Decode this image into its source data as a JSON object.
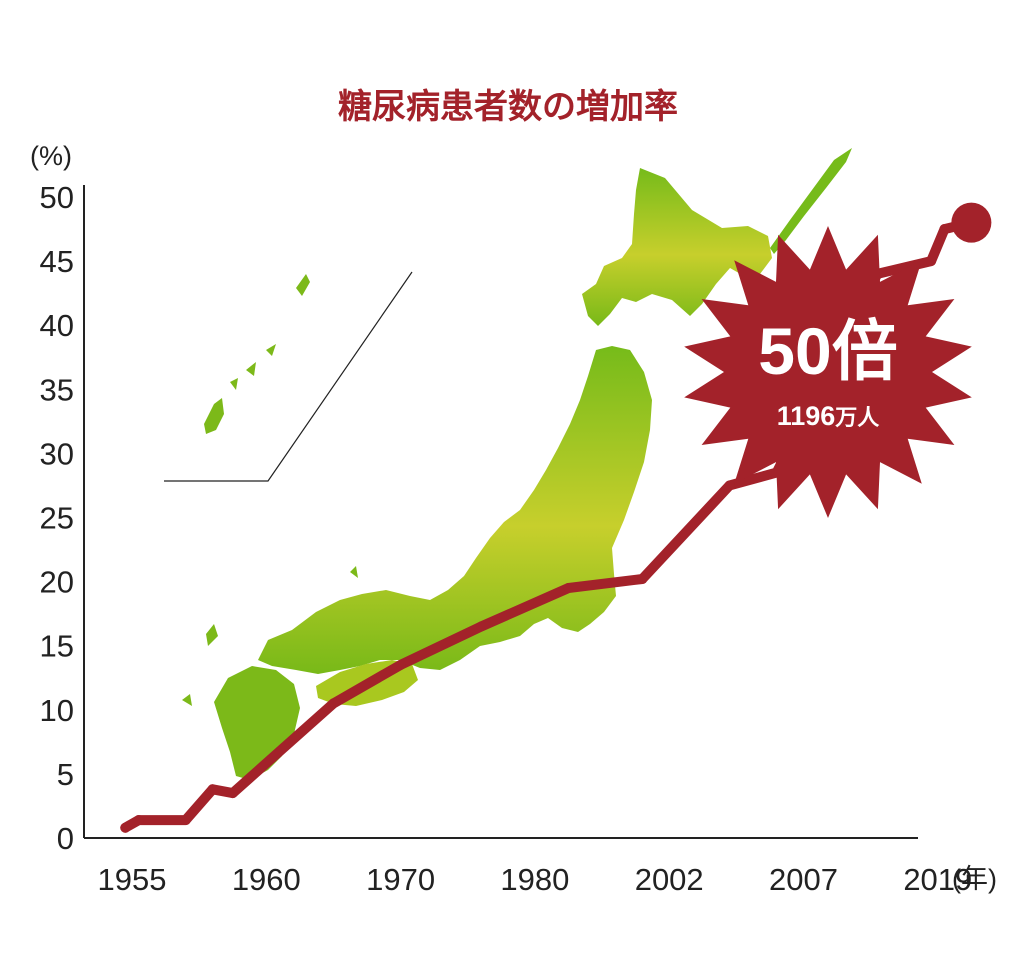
{
  "colors": {
    "line": "#a3222a",
    "badge": "#a3222a",
    "map_top": "#76bb1a",
    "map_mid": "#c7cf2c",
    "map_bottom": "#78b918",
    "axis": "#222222",
    "title": "#a3222a"
  },
  "chart_data": {
    "type": "line",
    "title": "糖尿病患者数の増加率",
    "ylabel": "(%)",
    "xlabel": "(年)",
    "ylim": [
      0,
      50
    ],
    "y_ticks": [
      "0",
      "5",
      "10",
      "15",
      "20",
      "25",
      "30",
      "35",
      "40",
      "45",
      "50"
    ],
    "x_tick_labels": [
      "1955",
      "1960",
      "1970",
      "1980",
      "2002",
      "2007",
      "2019"
    ],
    "x_tick_positions": [
      0,
      1,
      2,
      3,
      4,
      5,
      6
    ],
    "points": [
      {
        "x": -0.05,
        "y": 0.8
      },
      {
        "x": 0.05,
        "y": 1.4
      },
      {
        "x": 0.4,
        "y": 1.4
      },
      {
        "x": 0.6,
        "y": 3.8
      },
      {
        "x": 0.75,
        "y": 3.5
      },
      {
        "x": 1.5,
        "y": 10.5
      },
      {
        "x": 2.0,
        "y": 13.5
      },
      {
        "x": 2.6,
        "y": 16.5
      },
      {
        "x": 3.25,
        "y": 19.5
      },
      {
        "x": 3.8,
        "y": 20.2
      },
      {
        "x": 4.45,
        "y": 27.5
      },
      {
        "x": 4.8,
        "y": 28.5
      },
      {
        "x": 5.55,
        "y": 44.0
      },
      {
        "x": 5.95,
        "y": 45.0
      },
      {
        "x": 6.05,
        "y": 47.5
      }
    ],
    "end_marker": {
      "x": 6.25,
      "y": 48.0
    },
    "callout": {
      "main": "50倍",
      "sub_number": "1196",
      "sub_unit": "万人"
    }
  }
}
